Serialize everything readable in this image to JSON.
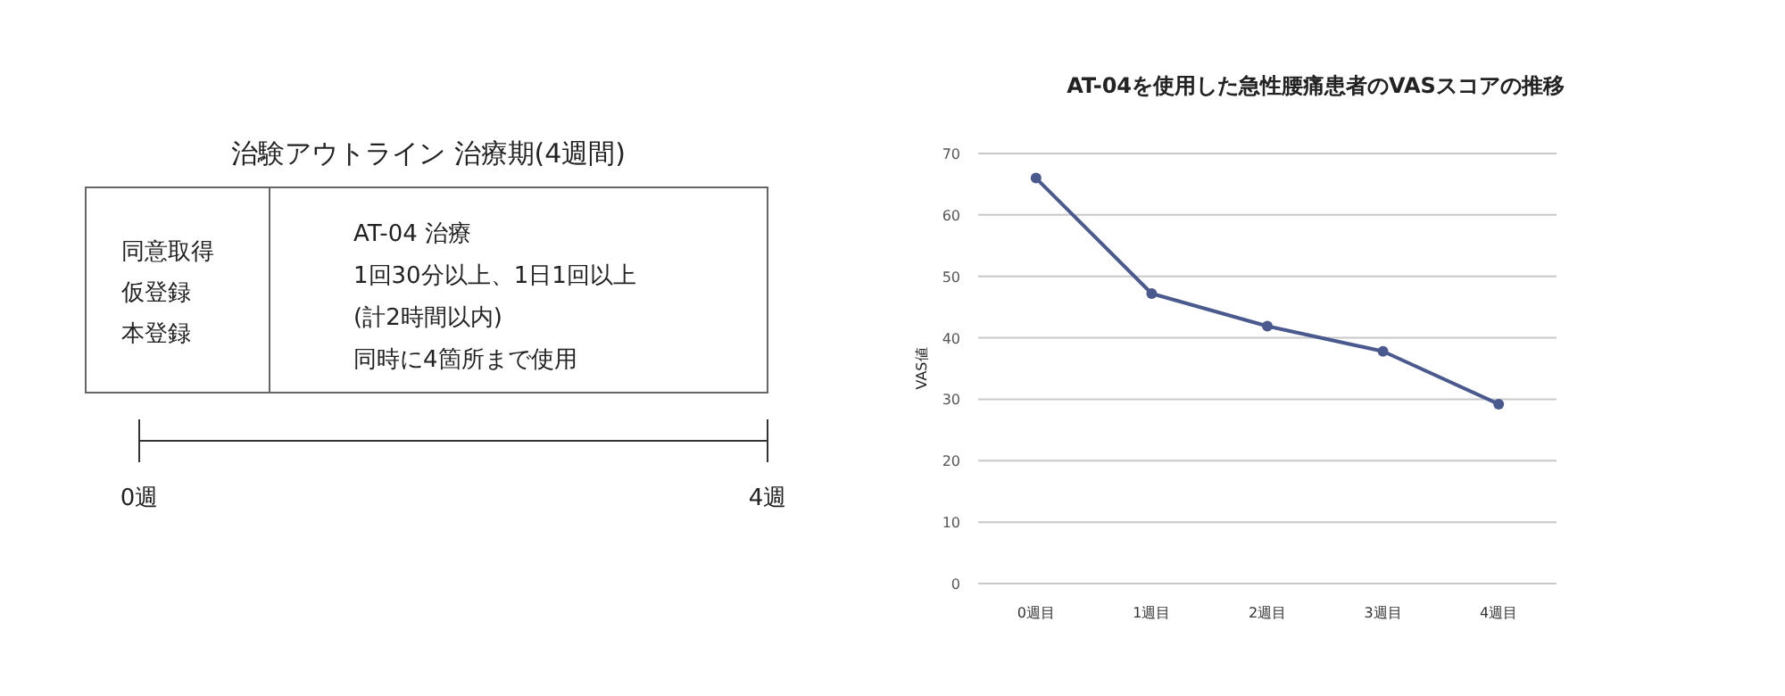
{
  "chart_data": [
    {
      "type": "other",
      "title": "治験アウトライン 治療期(4週間)",
      "annotations": [
        "同意取得",
        "仮登録",
        "本登録",
        "AT-04 治療",
        "1回30分以上、1日1回以上",
        "(計2時間以内)",
        "同時に4箇所まで使用",
        "0週",
        "4週"
      ]
    },
    {
      "type": "line",
      "title": "AT-04を使用した急性腰痛患者のVASスコアの推移",
      "ylabel": "VAS値",
      "categories": [
        "0週目",
        "1週目",
        "2週目",
        "3週目",
        "4週目"
      ],
      "series": [
        {
          "color": "#4a5a8e",
          "values": [
            66.0,
            47.2,
            41.9,
            37.8,
            29.2
          ]
        }
      ],
      "ylim": [
        0,
        70
      ],
      "yticks": [
        0,
        10,
        20,
        30,
        40,
        50,
        60,
        70
      ],
      "grid": "y",
      "marker": "circle",
      "line_style": "solid"
    }
  ]
}
